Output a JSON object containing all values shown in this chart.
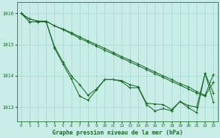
{
  "bg_color": "#c8ece6",
  "grid_color": "#a0d4c8",
  "line_color": "#1a6b2a",
  "marker": "+",
  "markersize": 3,
  "linewidth": 0.8,
  "xlabel": "Graphe pression niveau de la mer (hPa)",
  "xlabel_fontsize": 6,
  "ytick_fontsize": 5,
  "xtick_fontsize": 4.5,
  "yticks": [
    1013,
    1014,
    1015,
    1016
  ],
  "xticks": [
    0,
    1,
    2,
    3,
    4,
    5,
    6,
    7,
    8,
    9,
    10,
    11,
    12,
    13,
    14,
    15,
    16,
    17,
    18,
    19,
    20,
    21,
    22,
    23
  ],
  "xlim": [
    -0.5,
    23.5
  ],
  "ylim": [
    1012.55,
    1016.35
  ],
  "series": [
    [
      1016.0,
      1015.82,
      1015.75,
      1015.75,
      1015.6,
      1015.5,
      1015.38,
      1015.25,
      1015.12,
      1015.0,
      1014.88,
      1014.75,
      1014.62,
      1014.5,
      1014.38,
      1014.25,
      1014.12,
      1014.0,
      1013.88,
      1013.75,
      1013.65,
      1013.5,
      1013.38,
      1014.05
    ],
    [
      1016.0,
      1015.82,
      1015.75,
      1015.75,
      1015.6,
      1015.48,
      1015.35,
      1015.2,
      1015.08,
      1014.95,
      1014.82,
      1014.7,
      1014.57,
      1014.45,
      1014.32,
      1014.2,
      1014.07,
      1013.95,
      1013.82,
      1013.7,
      1013.58,
      1013.45,
      1013.35,
      1013.8
    ],
    [
      1016.0,
      1015.73,
      1015.73,
      1015.73,
      1014.93,
      1014.45,
      1014.0,
      1013.72,
      1013.38,
      1013.58,
      1013.88,
      1013.88,
      1013.85,
      1013.72,
      1013.65,
      1013.12,
      1013.1,
      1013.08,
      1012.92,
      1013.18,
      1013.05,
      1013.0,
      1014.08,
      1013.45
    ],
    [
      1016.0,
      1015.73,
      1015.73,
      1015.73,
      1014.88,
      1014.38,
      1013.9,
      1013.35,
      1013.22,
      1013.55,
      1013.88,
      1013.88,
      1013.82,
      1013.62,
      1013.62,
      1013.08,
      1012.88,
      1012.95,
      1012.88,
      1013.18,
      1012.98,
      1012.82,
      1014.08,
      1013.15
    ]
  ]
}
